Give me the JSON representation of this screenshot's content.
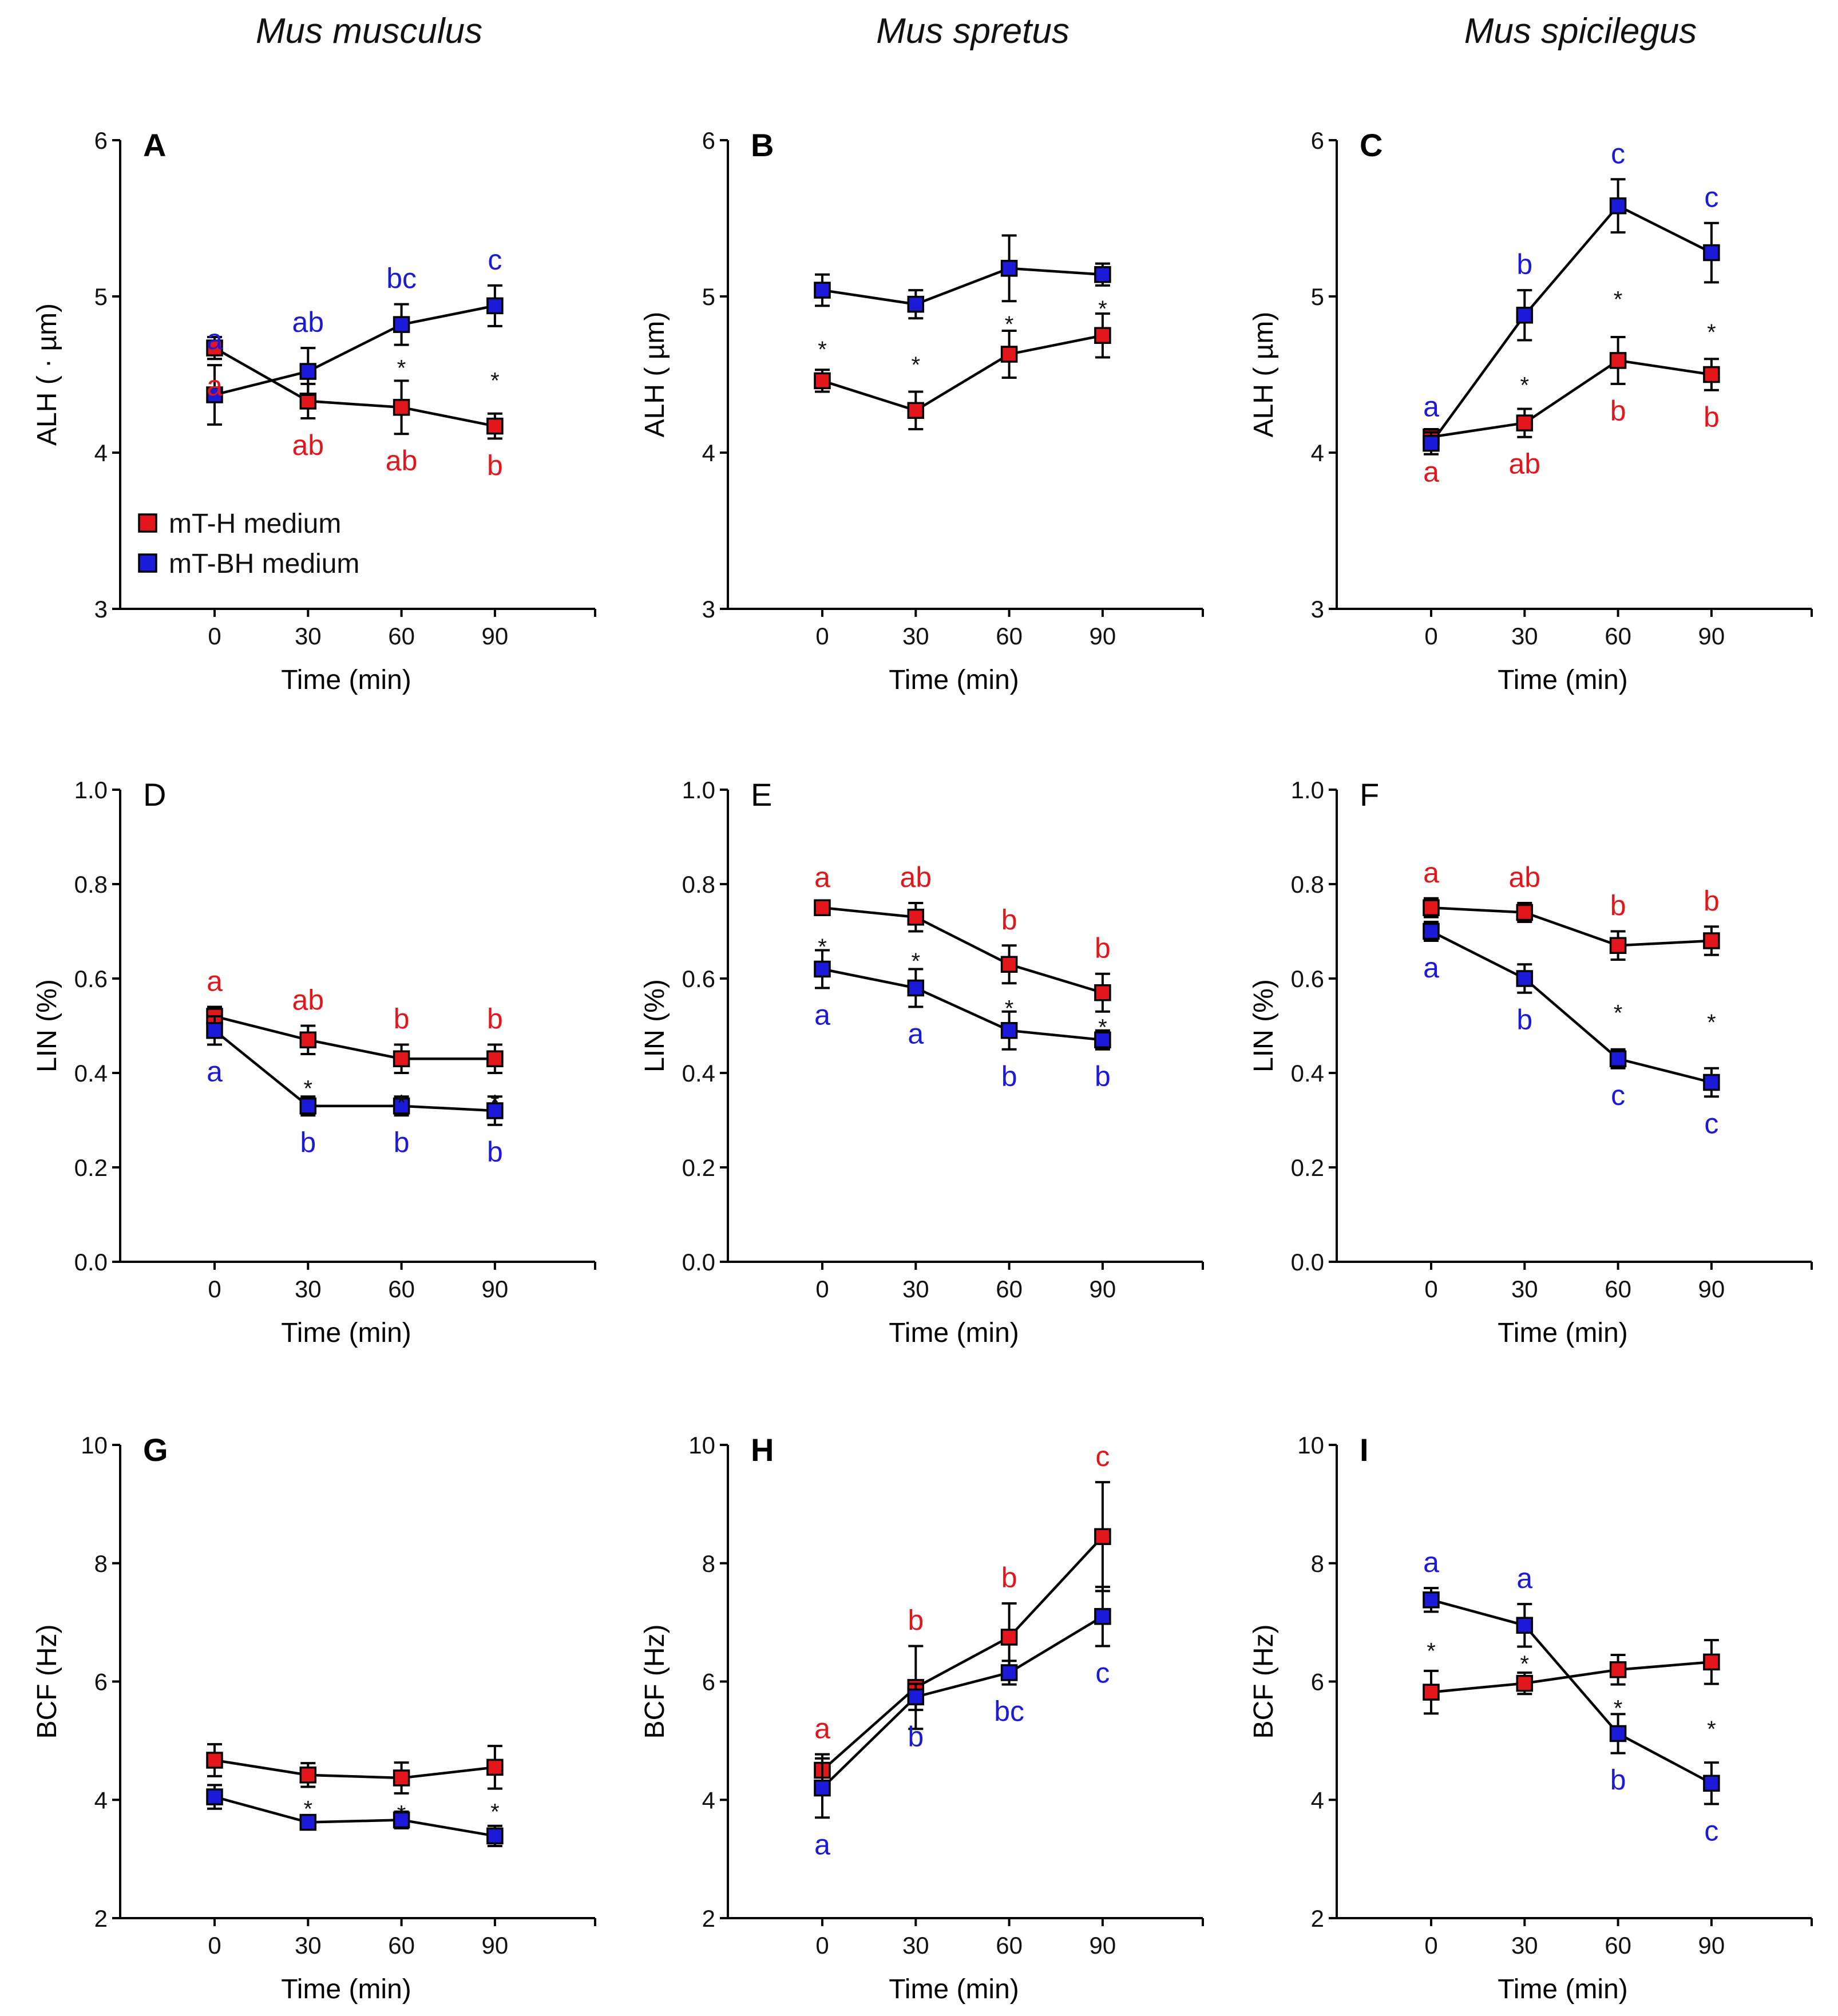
{
  "colors": {
    "mtH": "#e3171b",
    "mtBH": "#1a1ad8",
    "line": "#000000"
  },
  "column_titles": [
    "Mus musculus",
    "Mus spretus",
    "Mus spicilegus"
  ],
  "legend": [
    {
      "series": "mtH",
      "label": "mT-H medium"
    },
    {
      "series": "mtBH",
      "label": "mT-BH medium"
    }
  ],
  "chart_data": [
    {
      "type": "line",
      "panel": "A",
      "bold": true,
      "x": [
        0,
        30,
        60,
        90
      ],
      "xlabel": "Time (min)",
      "ylabel": "ALH ( · µm)",
      "ylim": [
        3,
        6
      ],
      "yticks": [
        3,
        4,
        5,
        6
      ],
      "ytick_labels": [
        "3",
        "4",
        "5",
        "6"
      ],
      "series": [
        {
          "key": "mtH",
          "name": "mT-H medium",
          "values": [
            4.67,
            4.33,
            4.29,
            4.17
          ],
          "err": [
            0.07,
            0.11,
            0.17,
            0.08
          ],
          "letters": [
            "a",
            "ab",
            "ab",
            "b"
          ],
          "letter_pos": [
            "below",
            "below",
            "below",
            "below"
          ]
        },
        {
          "key": "mtBH",
          "name": "mT-BH medium",
          "values": [
            4.37,
            4.52,
            4.82,
            4.94
          ],
          "err": [
            0.19,
            0.15,
            0.13,
            0.13
          ],
          "letters": [
            "a",
            "ab",
            "bc",
            "c"
          ],
          "letter_pos": [
            "above",
            "above",
            "above",
            "above"
          ]
        }
      ],
      "sig": [
        null,
        null,
        4.58,
        4.5
      ]
    },
    {
      "type": "line",
      "panel": "B",
      "bold": true,
      "x": [
        0,
        30,
        60,
        90
      ],
      "xlabel": "Time (min)",
      "ylabel": "ALH ( µm)",
      "ylim": [
        3,
        6
      ],
      "yticks": [
        3,
        4,
        5,
        6
      ],
      "ytick_labels": [
        "3",
        "4",
        "5",
        "6"
      ],
      "series": [
        {
          "key": "mtH",
          "name": "mT-H medium",
          "values": [
            4.46,
            4.27,
            4.63,
            4.75
          ],
          "err": [
            0.07,
            0.12,
            0.15,
            0.14
          ],
          "letters": [],
          "letter_pos": []
        },
        {
          "key": "mtBH",
          "name": "mT-BH medium",
          "values": [
            5.04,
            4.95,
            5.18,
            5.14
          ],
          "err": [
            0.1,
            0.09,
            0.21,
            0.07
          ],
          "letters": [],
          "letter_pos": []
        }
      ],
      "sig": [
        4.7,
        4.6,
        4.86,
        4.96
      ]
    },
    {
      "type": "line",
      "panel": "C",
      "bold": true,
      "x": [
        0,
        30,
        60,
        90
      ],
      "xlabel": "Time (min)",
      "ylabel": "ALH ( µm)",
      "ylim": [
        3,
        6
      ],
      "yticks": [
        3,
        4,
        5,
        6
      ],
      "ytick_labels": [
        "3",
        "4",
        "5",
        "6"
      ],
      "series": [
        {
          "key": "mtH",
          "name": "mT-H medium",
          "values": [
            4.1,
            4.19,
            4.59,
            4.5
          ],
          "err": [
            0.05,
            0.09,
            0.15,
            0.1
          ],
          "letters": [
            "a",
            "ab",
            "b",
            "b"
          ],
          "letter_pos": [
            "below",
            "below",
            "below",
            "below"
          ]
        },
        {
          "key": "mtBH",
          "name": "mT-BH medium",
          "values": [
            4.06,
            4.88,
            5.58,
            5.28
          ],
          "err": [
            0.07,
            0.16,
            0.17,
            0.19
          ],
          "letters": [
            "a",
            "b",
            "c",
            "c"
          ],
          "letter_pos": [
            "above",
            "above",
            "above",
            "above"
          ]
        }
      ],
      "sig": [
        null,
        4.47,
        5.02,
        4.81
      ]
    },
    {
      "type": "line",
      "panel": "D",
      "bold": false,
      "x": [
        0,
        30,
        60,
        90
      ],
      "xlabel": "Time (min)",
      "ylabel": "LIN (%)",
      "ylim": [
        0,
        1
      ],
      "yticks": [
        0,
        0.2,
        0.4,
        0.6,
        0.8,
        1.0
      ],
      "ytick_labels": [
        "0.0",
        "0.2",
        "0.4",
        "0.6",
        "0.8",
        "1.0"
      ],
      "series": [
        {
          "key": "mtH",
          "name": "mT-H medium",
          "values": [
            0.52,
            0.47,
            0.43,
            0.43
          ],
          "err": [
            0.02,
            0.03,
            0.03,
            0.03
          ],
          "letters": [
            "a",
            "ab",
            "b",
            "b"
          ],
          "letter_pos": [
            "above",
            "above",
            "above",
            "above"
          ]
        },
        {
          "key": "mtBH",
          "name": "mT-BH medium",
          "values": [
            0.49,
            0.33,
            0.33,
            0.32
          ],
          "err": [
            0.03,
            0.02,
            0.02,
            0.03
          ],
          "letters": [
            "a",
            "b",
            "b",
            "b"
          ],
          "letter_pos": [
            "below",
            "below",
            "below",
            "below"
          ]
        }
      ],
      "sig": [
        null,
        0.38,
        0.35,
        0.35
      ]
    },
    {
      "type": "line",
      "panel": "E",
      "bold": false,
      "x": [
        0,
        30,
        60,
        90
      ],
      "xlabel": "Time (min)",
      "ylabel": "LIN (%)",
      "ylim": [
        0,
        1
      ],
      "yticks": [
        0,
        0.2,
        0.4,
        0.6,
        0.8,
        1.0
      ],
      "ytick_labels": [
        "0.0",
        "0.2",
        "0.4",
        "0.6",
        "0.8",
        "1.0"
      ],
      "series": [
        {
          "key": "mtH",
          "name": "mT-H medium",
          "values": [
            0.75,
            0.73,
            0.63,
            0.57
          ],
          "err": [
            0.01,
            0.03,
            0.04,
            0.04
          ],
          "letters": [
            "a",
            "ab",
            "b",
            "b"
          ],
          "letter_pos": [
            "above",
            "above",
            "above",
            "above"
          ]
        },
        {
          "key": "mtBH",
          "name": "mT-BH medium",
          "values": [
            0.62,
            0.58,
            0.49,
            0.47
          ],
          "err": [
            0.04,
            0.04,
            0.04,
            0.02
          ],
          "letters": [
            "a",
            "a",
            "b",
            "b"
          ],
          "letter_pos": [
            "below",
            "below",
            "below",
            "below"
          ]
        }
      ],
      "sig": [
        0.68,
        0.65,
        0.55,
        0.51
      ]
    },
    {
      "type": "line",
      "panel": "F",
      "bold": false,
      "x": [
        0,
        30,
        60,
        90
      ],
      "xlabel": "Time (min)",
      "ylabel": "LIN (%)",
      "ylim": [
        0,
        1
      ],
      "yticks": [
        0,
        0.2,
        0.4,
        0.6,
        0.8,
        1.0
      ],
      "ytick_labels": [
        "0.0",
        "0.2",
        "0.4",
        "0.6",
        "0.8",
        "1.0"
      ],
      "series": [
        {
          "key": "mtH",
          "name": "mT-H medium",
          "values": [
            0.75,
            0.74,
            0.67,
            0.68
          ],
          "err": [
            0.02,
            0.02,
            0.03,
            0.03
          ],
          "letters": [
            "a",
            "ab",
            "b",
            "b"
          ],
          "letter_pos": [
            "above",
            "above",
            "above",
            "above"
          ]
        },
        {
          "key": "mtBH",
          "name": "mT-BH medium",
          "values": [
            0.7,
            0.6,
            0.43,
            0.38
          ],
          "err": [
            0.02,
            0.03,
            0.02,
            0.03
          ],
          "letters": [
            "a",
            "b",
            "c",
            "c"
          ],
          "letter_pos": [
            "below",
            "below",
            "below",
            "below"
          ]
        }
      ],
      "sig": [
        null,
        null,
        0.54,
        0.52
      ]
    },
    {
      "type": "line",
      "panel": "G",
      "bold": true,
      "x": [
        0,
        30,
        60,
        90
      ],
      "xlabel": "Time (min)",
      "ylabel": "BCF (Hz)",
      "ylim": [
        2,
        10
      ],
      "yticks": [
        2,
        4,
        6,
        8,
        10
      ],
      "ytick_labels": [
        "2",
        "4",
        "6",
        "8",
        "10"
      ],
      "series": [
        {
          "key": "mtH",
          "name": "mT-H medium",
          "values": [
            4.67,
            4.42,
            4.37,
            4.55
          ],
          "err": [
            0.27,
            0.2,
            0.26,
            0.36
          ],
          "letters": [],
          "letter_pos": []
        },
        {
          "key": "mtBH",
          "name": "mT-BH medium",
          "values": [
            4.05,
            3.62,
            3.66,
            3.39
          ],
          "err": [
            0.2,
            0.12,
            0.14,
            0.17
          ],
          "letters": [],
          "letter_pos": []
        }
      ],
      "sig": [
        null,
        3.95,
        3.87,
        3.9
      ]
    },
    {
      "type": "line",
      "panel": "H",
      "bold": true,
      "x": [
        0,
        30,
        60,
        90
      ],
      "xlabel": "Time (min)",
      "ylabel": "BCF (Hz)",
      "ylim": [
        2,
        10
      ],
      "yticks": [
        2,
        4,
        6,
        8,
        10
      ],
      "ytick_labels": [
        "2",
        "4",
        "6",
        "8",
        "10"
      ],
      "series": [
        {
          "key": "mtH",
          "name": "mT-H medium",
          "values": [
            4.5,
            5.9,
            6.75,
            8.45
          ],
          "err": [
            0.27,
            0.7,
            0.57,
            0.92
          ],
          "letters": [
            "a",
            "b",
            "b",
            "c"
          ],
          "letter_pos": [
            "above",
            "above",
            "above",
            "above"
          ]
        },
        {
          "key": "mtBH",
          "name": "mT-BH medium",
          "values": [
            4.2,
            5.74,
            6.15,
            7.1
          ],
          "err": [
            0.5,
            0.22,
            0.2,
            0.5
          ],
          "letters": [
            "a",
            "b",
            "bc",
            "c"
          ],
          "letter_pos": [
            "below",
            "below",
            "below",
            "below"
          ]
        }
      ],
      "sig": []
    },
    {
      "type": "line",
      "panel": "I",
      "bold": true,
      "x": [
        0,
        30,
        60,
        90
      ],
      "xlabel": "Time (min)",
      "ylabel": "BCF (Hz)",
      "ylim": [
        2,
        10
      ],
      "yticks": [
        2,
        4,
        6,
        8,
        10
      ],
      "ytick_labels": [
        "2",
        "4",
        "6",
        "8",
        "10"
      ],
      "series": [
        {
          "key": "mtH",
          "name": "mT-H medium",
          "values": [
            5.82,
            5.97,
            6.2,
            6.33
          ],
          "err": [
            0.36,
            0.18,
            0.25,
            0.37
          ],
          "letters": [],
          "letter_pos": []
        },
        {
          "key": "mtBH",
          "name": "mT-BH medium",
          "values": [
            7.38,
            6.95,
            5.12,
            4.28
          ],
          "err": [
            0.2,
            0.36,
            0.33,
            0.35
          ],
          "letters": [
            "a",
            "a",
            "b",
            "c"
          ],
          "letter_pos": [
            "above",
            "above",
            "below",
            "below"
          ]
        }
      ],
      "sig": [
        6.62,
        6.4,
        5.65,
        5.3
      ]
    }
  ]
}
